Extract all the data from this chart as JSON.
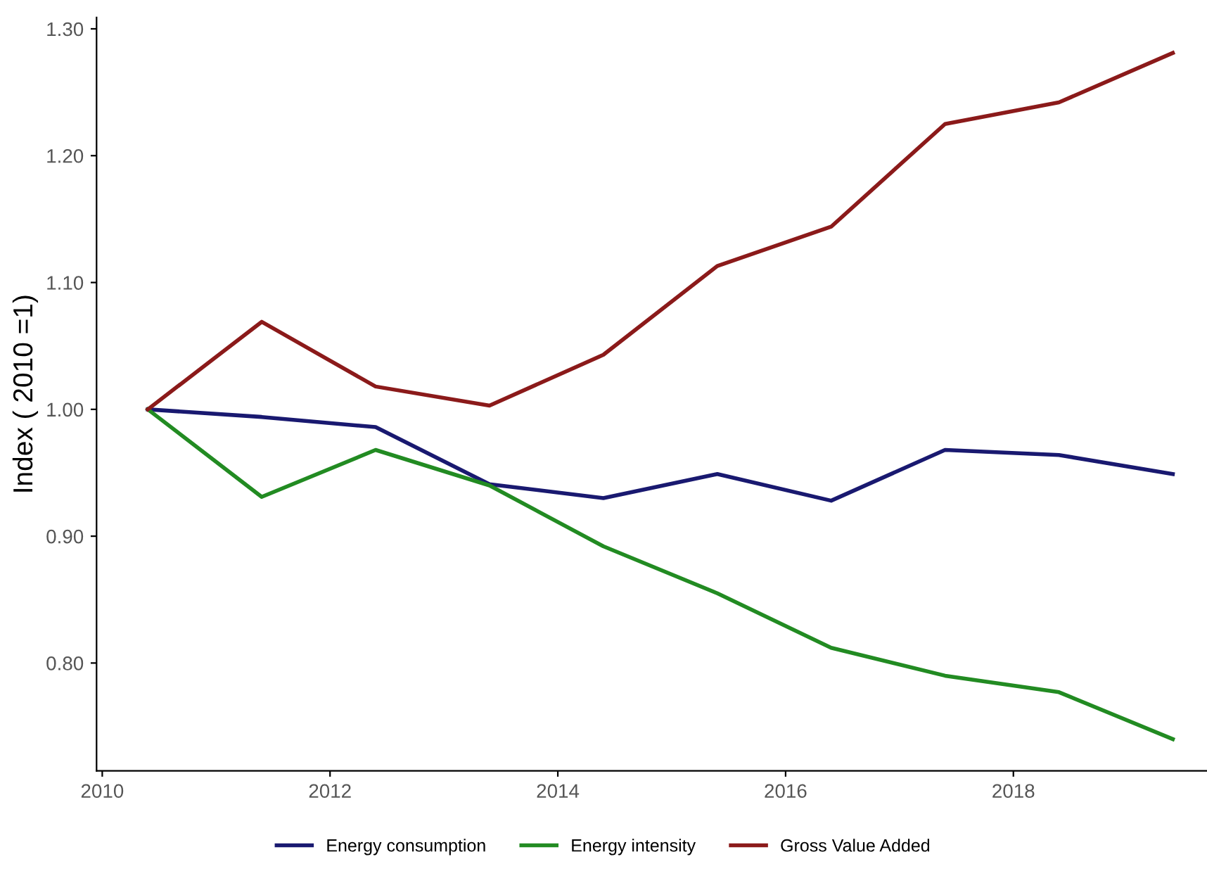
{
  "chart_data": {
    "type": "line",
    "ylabel": "Index ( 2010 =1)",
    "x": [
      2010.4,
      2011.4,
      2012.4,
      2013.4,
      2014.4,
      2015.4,
      2016.4,
      2017.4,
      2018.4,
      2019.4
    ],
    "series": [
      {
        "name": "Energy consumption",
        "color": "#191970",
        "values": [
          1.0,
          0.994,
          0.986,
          0.941,
          0.93,
          0.949,
          0.928,
          0.968,
          0.964,
          0.949
        ]
      },
      {
        "name": "Energy intensity",
        "color": "#228b22",
        "values": [
          1.0,
          0.931,
          0.968,
          0.94,
          0.892,
          0.855,
          0.812,
          0.79,
          0.777,
          0.74
        ]
      },
      {
        "name": "Gross Value Added",
        "color": "#8b1a1a",
        "values": [
          1.0,
          1.069,
          1.018,
          1.003,
          1.043,
          1.113,
          1.144,
          1.225,
          1.242,
          1.281
        ]
      }
    ],
    "xlim": [
      2009.95,
      2019.7
    ],
    "xticks": [
      2010,
      2012,
      2014,
      2016,
      2018
    ],
    "ylim": [
      0.715,
      1.309
    ],
    "yticks": [
      {
        "value": 0.8,
        "label": "0.80"
      },
      {
        "value": 0.9,
        "label": "0.90"
      },
      {
        "value": 1.0,
        "label": "1.00"
      },
      {
        "value": 1.1,
        "label": "1.10"
      },
      {
        "value": 1.2,
        "label": "1.20"
      },
      {
        "value": 1.3,
        "label": "1.30"
      }
    ],
    "grid": false,
    "legend": "bottom",
    "line_style": "solid"
  }
}
